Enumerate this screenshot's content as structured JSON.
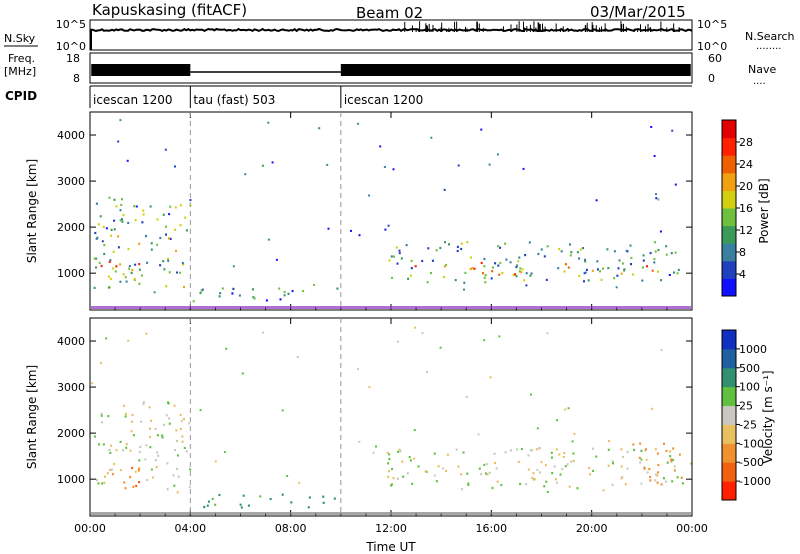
{
  "header": {
    "station": "Kapuskasing (fitACF)",
    "beam": "Beam 02",
    "date": "03/Mar/2015"
  },
  "strips": {
    "nsky": {
      "label": "N.Sky",
      "ticks": [
        "10^5",
        "10^0"
      ],
      "right_ticks": [
        "10^5",
        "10^0"
      ],
      "right_label": "N.Search",
      "right_dots": "........"
    },
    "freq": {
      "label_top": "Freq.",
      "label_bottom": "[MHz]",
      "ticks": [
        "18",
        "8"
      ],
      "right_ticks": [
        "60",
        "0"
      ],
      "right_label": "Nave",
      "right_dots": "...."
    },
    "cpid": {
      "label": "CPID",
      "segments": [
        {
          "name": "icescan 1200",
          "start_hour": 0
        },
        {
          "name": "tau (fast) 503",
          "start_hour": 4
        },
        {
          "name": "icescan 1200",
          "start_hour": 10
        }
      ]
    }
  },
  "chart_data": [
    {
      "type": "heatmap",
      "name": "power",
      "ylabel": "Slant Range [km]",
      "yticks": [
        "1000",
        "2000",
        "3000",
        "4000"
      ],
      "ylim": [
        200,
        4500
      ],
      "xlim": [
        0,
        24
      ],
      "xticks": [
        "00:00",
        "04:00",
        "08:00",
        "12:00",
        "16:00",
        "20:00",
        "00:00"
      ],
      "colorbar": {
        "label": "Power [dB]",
        "ticks": [
          "4",
          "8",
          "12",
          "16",
          "20",
          "24",
          "28"
        ],
        "colors": [
          "#1010ff",
          "#2040c0",
          "#3a7f9e",
          "#3a9a5a",
          "#70c040",
          "#d0d010",
          "#f0a010",
          "#f06000",
          "#ff2000",
          "#e00000"
        ]
      },
      "regions": [
        {
          "t0": 0.1,
          "t1": 4.0,
          "r0": 700,
          "r1": 2700,
          "level": 12
        },
        {
          "t0": 0.2,
          "t1": 2.0,
          "r0": 800,
          "r1": 1300,
          "level": 22
        },
        {
          "t0": 4.0,
          "t1": 10.0,
          "r0": 400,
          "r1": 700,
          "level": 8
        },
        {
          "t0": 11.8,
          "t1": 23.6,
          "r0": 800,
          "r1": 1700,
          "level": 10
        },
        {
          "t0": 12.5,
          "t1": 22.5,
          "r0": 950,
          "r1": 1250,
          "level": 20
        }
      ]
    },
    {
      "type": "heatmap",
      "name": "velocity",
      "ylabel": "Slant Range [km]",
      "yticks": [
        "1000",
        "2000",
        "3000",
        "4000"
      ],
      "ylim": [
        200,
        4500
      ],
      "xlim": [
        0,
        24
      ],
      "xticks": [
        "00:00",
        "04:00",
        "08:00",
        "12:00",
        "16:00",
        "20:00",
        "00:00"
      ],
      "xlabel": "Time UT",
      "colorbar": {
        "label": "Velocity [m s⁻¹]",
        "ticks": [
          "1000",
          "500",
          "100",
          "25",
          "-25",
          "-100",
          "-500",
          "-1000"
        ],
        "colors": [
          "#1030c0",
          "#2060a0",
          "#309070",
          "#60c040",
          "#c8c8c0",
          "#e8c060",
          "#f09030",
          "#f06010",
          "#ff2000"
        ]
      },
      "regions": [
        {
          "t0": 0.1,
          "t1": 4.0,
          "r0": 700,
          "r1": 2700,
          "level": 0
        },
        {
          "t0": 0.2,
          "t1": 2.0,
          "r0": 800,
          "r1": 1300,
          "level": -300
        },
        {
          "t0": 4.0,
          "t1": 10.0,
          "r0": 400,
          "r1": 700,
          "level": 80
        },
        {
          "t0": 11.8,
          "t1": 23.6,
          "r0": 800,
          "r1": 1700,
          "level": 0
        },
        {
          "t0": 21.5,
          "t1": 23.6,
          "r0": 900,
          "r1": 1800,
          "level": -200
        }
      ]
    }
  ]
}
